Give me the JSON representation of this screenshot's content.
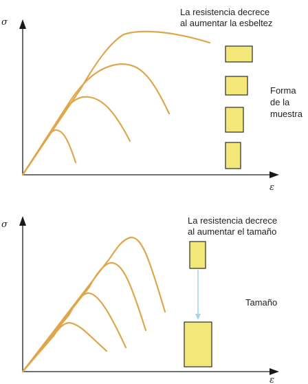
{
  "colors": {
    "curve": "#dfa64c",
    "sample_fill": "#f4e77a",
    "sample_stroke": "#2a2a2a",
    "axis": "#1a1a1a",
    "arrow": "#a7d3ea"
  },
  "top_panel": {
    "y_axis_symbol": "σ",
    "x_axis_symbol": "ε",
    "annotation_line1": "La resistencia decrece",
    "annotation_line2": "al aumentar la esbeltez",
    "side_label_line1": "Forma",
    "side_label_line2": "de la",
    "side_label_line3": "muestra"
  },
  "bottom_panel": {
    "y_axis_symbol": "σ",
    "x_axis_symbol": "ε",
    "annotation_line1": "La resistencia decrece",
    "annotation_line2": "al aumentar el tamaño",
    "side_label": "Tamaño"
  }
}
